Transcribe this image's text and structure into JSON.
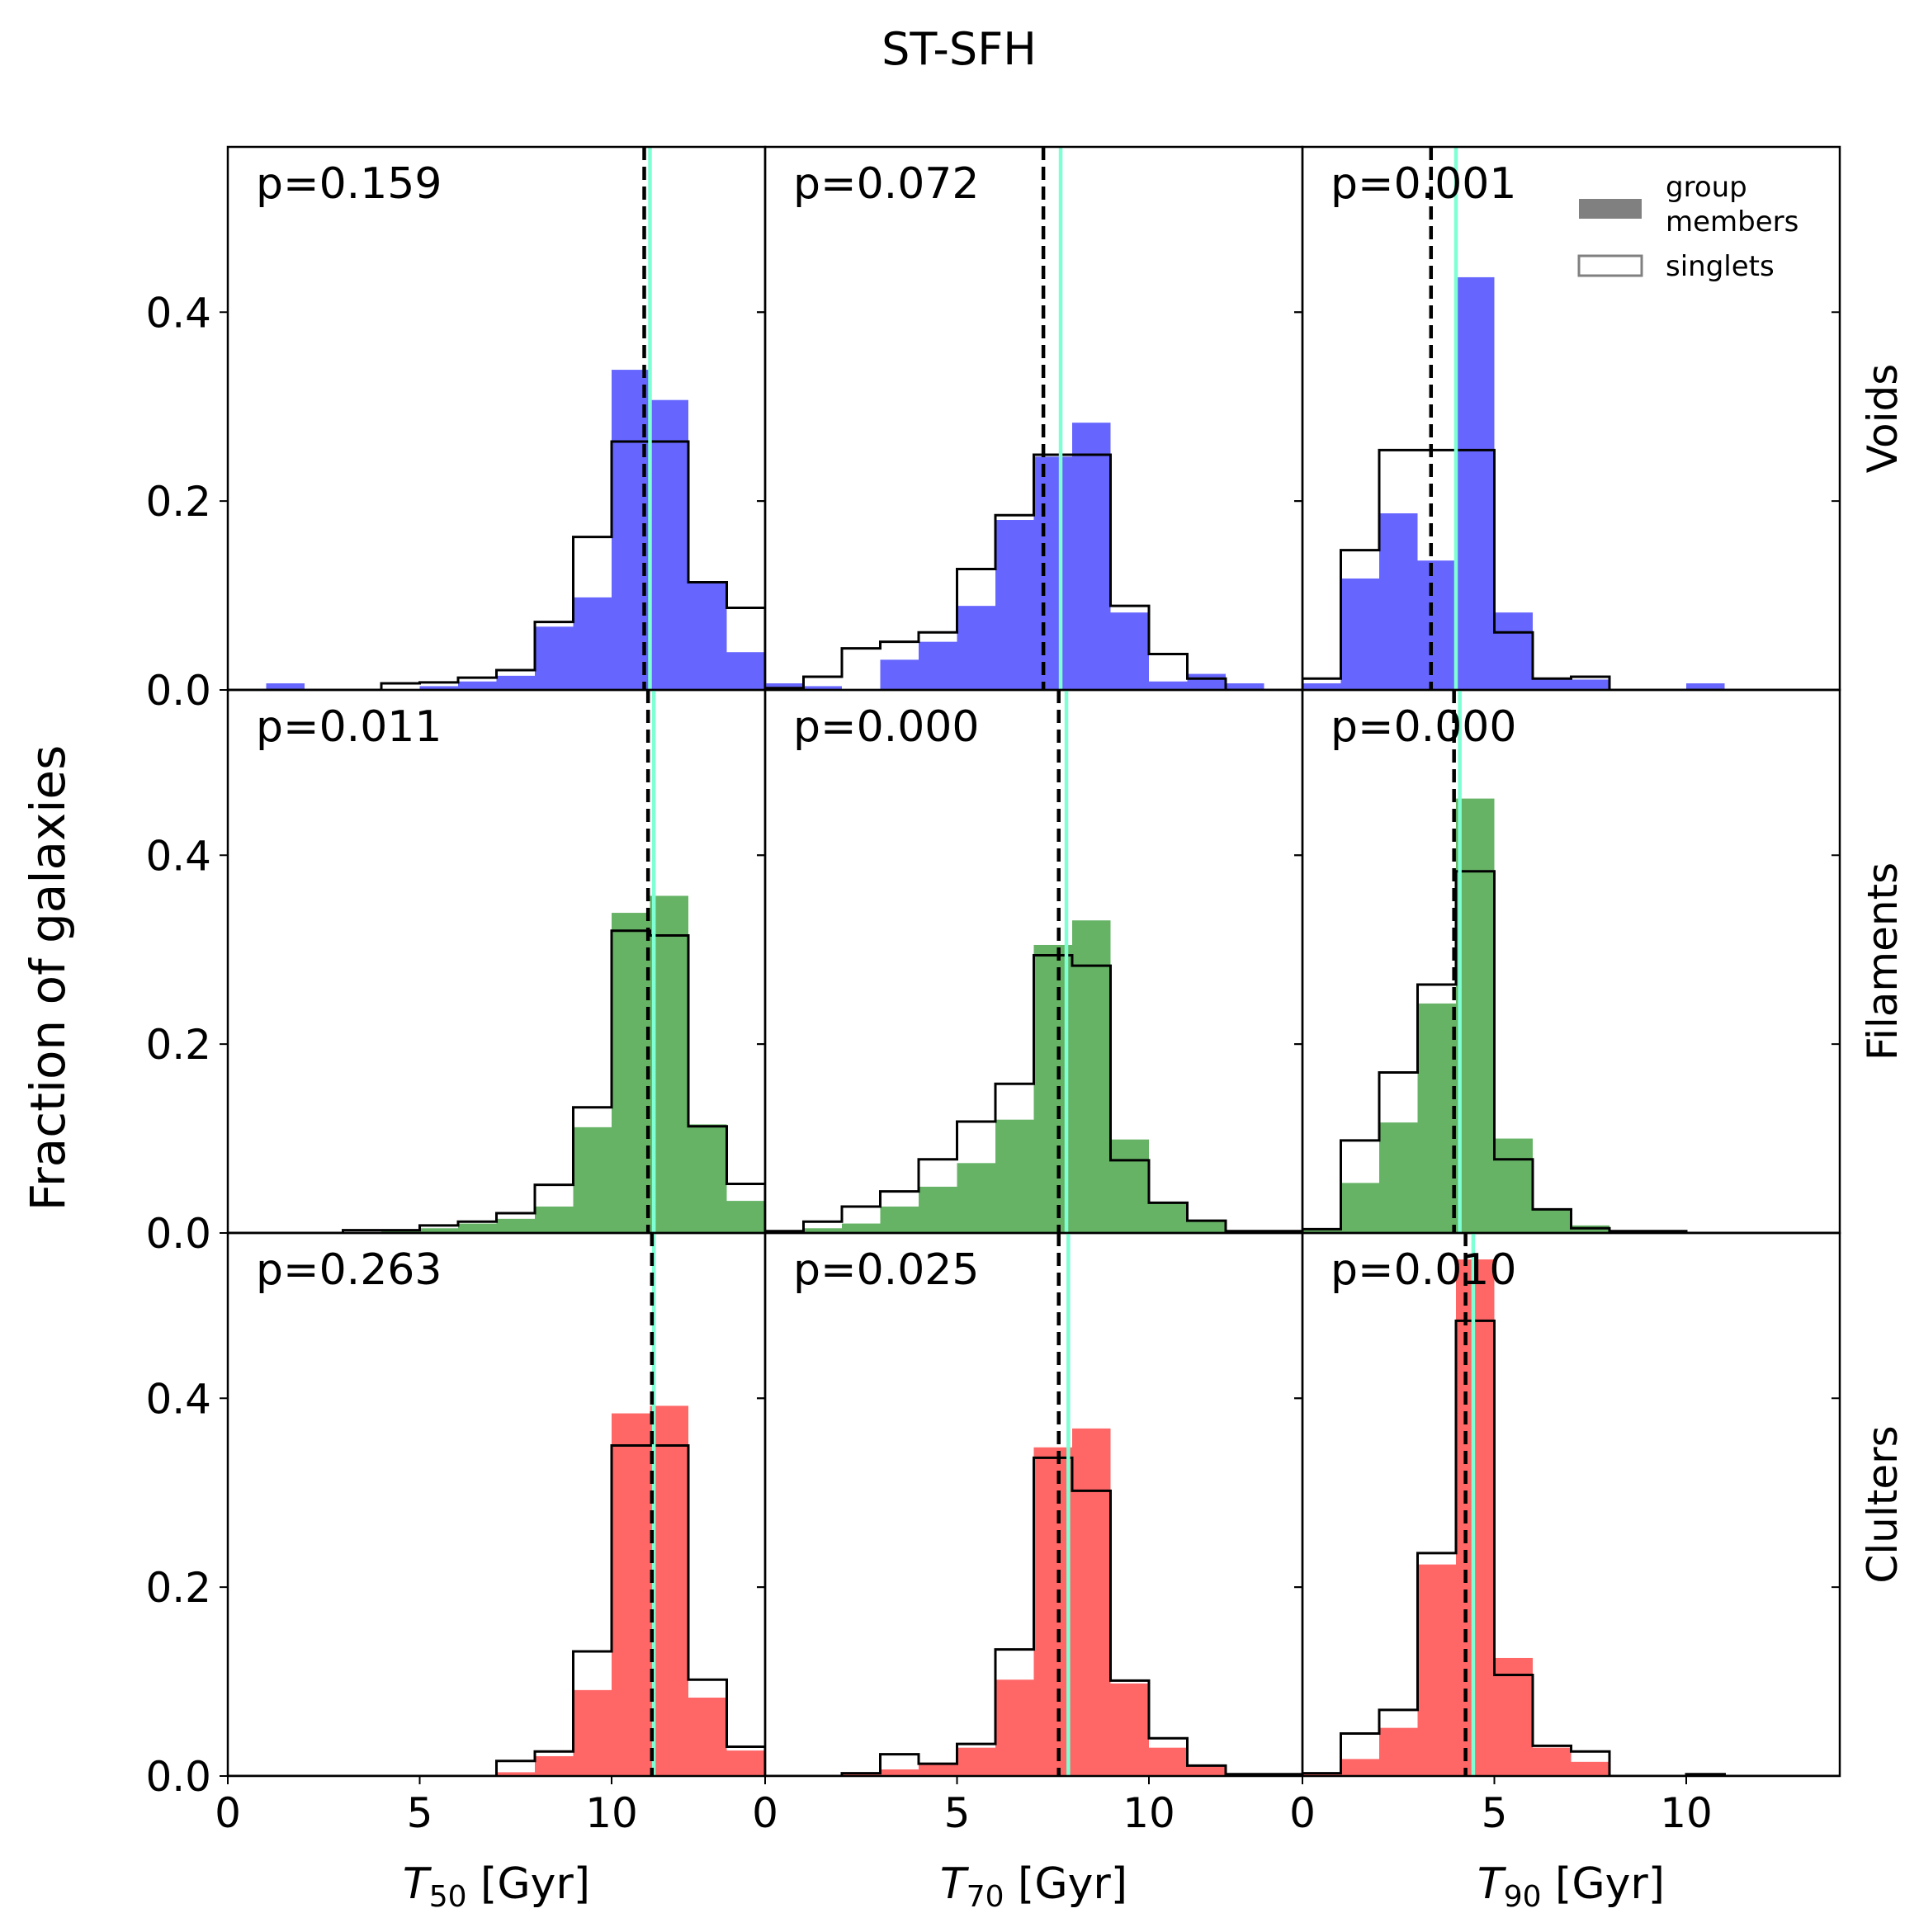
{
  "figure": {
    "title": "ST-SFH",
    "ylabel": "Fraction of galaxies",
    "row_labels": [
      "Voids",
      "Filaments",
      "Clulters"
    ],
    "xlabels": [
      {
        "sym": "T",
        "sub": "50",
        "unit": " [Gyr]"
      },
      {
        "sym": "T",
        "sub": "70",
        "unit": " [Gyr]"
      },
      {
        "sym": "T",
        "sub": "90",
        "unit": " [Gyr]"
      }
    ],
    "legend": {
      "filled": "group members",
      "filled_lines": [
        "group",
        "members"
      ],
      "outline": "singlets"
    },
    "colors": {
      "Voids": "#6666ff",
      "Filaments": "#66b366",
      "Clulters": "#ff6666",
      "median_line": "#7fffd4",
      "outline": "#000000"
    }
  },
  "chart_data": {
    "type": "bar",
    "xlim": [
      0,
      14
    ],
    "ylim": [
      0,
      0.575
    ],
    "xticks": [
      0,
      5,
      10
    ],
    "yticks": [
      0.0,
      0.2,
      0.4
    ],
    "ytick_labels": [
      "0.0",
      "0.2",
      "0.4"
    ],
    "bin_width": 1,
    "bin_edges": [
      0,
      1,
      2,
      3,
      4,
      5,
      6,
      7,
      8,
      9,
      10,
      11,
      12,
      13,
      14
    ],
    "panels": [
      {
        "row": "Voids",
        "quantity": "T50",
        "p_label": "p=0.159",
        "group_members": [
          0,
          0.007,
          0,
          0,
          0,
          0.004,
          0.009,
          0.015,
          0.067,
          0.098,
          0.339,
          0.307,
          0.114,
          0.04
        ],
        "singlets": [
          0,
          0,
          0,
          0,
          0.007,
          0.008,
          0.013,
          0.021,
          0.072,
          0.162,
          0.263,
          0.263,
          0.114,
          0.087
        ],
        "median_group": 11.0,
        "median_singlets": 10.85
      },
      {
        "row": "Voids",
        "quantity": "T70",
        "p_label": "p=0.072",
        "group_members": [
          0.007,
          0.004,
          0,
          0.032,
          0.051,
          0.089,
          0.18,
          0.247,
          0.283,
          0.082,
          0.009,
          0.017,
          0.007,
          0
        ],
        "singlets": [
          0.002,
          0.014,
          0.044,
          0.051,
          0.061,
          0.128,
          0.185,
          0.249,
          0.249,
          0.089,
          0.038,
          0.012,
          0,
          0
        ],
        "median_group": 7.7,
        "median_singlets": 7.25
      },
      {
        "row": "Voids",
        "quantity": "T90",
        "p_label": "p=0.001",
        "group_members": [
          0.007,
          0.118,
          0.187,
          0.137,
          0.437,
          0.082,
          0.011,
          0.011,
          0,
          0,
          0.007,
          0,
          0,
          0
        ],
        "singlets": [
          0.012,
          0.148,
          0.254,
          0.254,
          0.254,
          0.061,
          0.012,
          0.014,
          0,
          0,
          0,
          0,
          0,
          0
        ],
        "median_group": 4.0,
        "median_singlets": 3.35
      },
      {
        "row": "Filaments",
        "quantity": "T50",
        "p_label": "p=0.011",
        "group_members": [
          0,
          0,
          0,
          0,
          0.003,
          0.005,
          0.01,
          0.015,
          0.028,
          0.112,
          0.339,
          0.357,
          0.115,
          0.034
        ],
        "singlets": [
          0,
          0,
          0,
          0.003,
          0.003,
          0.008,
          0.012,
          0.021,
          0.051,
          0.133,
          0.32,
          0.315,
          0.113,
          0.052
        ],
        "median_group": 11.1,
        "median_singlets": 10.95
      },
      {
        "row": "Filaments",
        "quantity": "T70",
        "p_label": "p=0.000",
        "group_members": [
          0,
          0.005,
          0.01,
          0.028,
          0.049,
          0.074,
          0.12,
          0.305,
          0.331,
          0.099,
          0.032,
          0.012,
          0.002,
          0
        ],
        "singlets": [
          0.002,
          0.012,
          0.028,
          0.044,
          0.078,
          0.118,
          0.158,
          0.294,
          0.283,
          0.077,
          0.032,
          0.013,
          0.002,
          0.002
        ],
        "median_group": 7.85,
        "median_singlets": 7.65
      },
      {
        "row": "Filaments",
        "quantity": "T90",
        "p_label": "p=0.000",
        "group_members": [
          0.004,
          0.053,
          0.117,
          0.243,
          0.46,
          0.1,
          0.025,
          0.008,
          0.003,
          0.002,
          0,
          0,
          0,
          0
        ],
        "singlets": [
          0.004,
          0.098,
          0.17,
          0.263,
          0.383,
          0.078,
          0.025,
          0.005,
          0.002,
          0.002,
          0,
          0,
          0,
          0
        ],
        "median_group": 4.1,
        "median_singlets": 3.95
      },
      {
        "row": "Clulters",
        "quantity": "T50",
        "p_label": "p=0.263",
        "group_members": [
          0,
          0,
          0,
          0,
          0,
          0,
          0,
          0.004,
          0.021,
          0.091,
          0.384,
          0.392,
          0.083,
          0.027
        ],
        "singlets": [
          0,
          0,
          0,
          0,
          0,
          0,
          0,
          0.016,
          0.026,
          0.132,
          0.35,
          0.35,
          0.102,
          0.031
        ],
        "median_group": 11.1,
        "median_singlets": 11.05
      },
      {
        "row": "Clulters",
        "quantity": "T70",
        "p_label": "p=0.025",
        "group_members": [
          0,
          0,
          0.003,
          0.007,
          0.012,
          0.03,
          0.102,
          0.348,
          0.368,
          0.098,
          0.03,
          0.011,
          0,
          0.002
        ],
        "singlets": [
          0,
          0,
          0.003,
          0.023,
          0.013,
          0.034,
          0.134,
          0.337,
          0.302,
          0.101,
          0.04,
          0.011,
          0.002,
          0.002
        ],
        "median_group": 7.9,
        "median_singlets": 7.65
      },
      {
        "row": "Clulters",
        "quantity": "T90",
        "p_label": "p=0.010",
        "group_members": [
          0.003,
          0.018,
          0.051,
          0.224,
          0.547,
          0.125,
          0.03,
          0.015,
          0,
          0,
          0.002,
          0,
          0,
          0
        ],
        "singlets": [
          0.003,
          0.045,
          0.07,
          0.236,
          0.482,
          0.107,
          0.032,
          0.026,
          0,
          0,
          0.002,
          0,
          0,
          0
        ],
        "median_group": 4.45,
        "median_singlets": 4.25
      }
    ]
  }
}
